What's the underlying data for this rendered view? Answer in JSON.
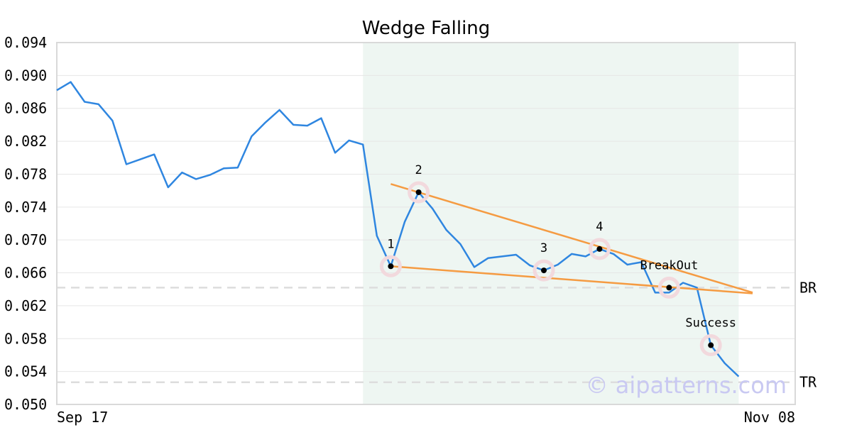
{
  "chart_data": {
    "type": "line",
    "title": "Wedge Falling",
    "xlabel": "",
    "ylabel": "",
    "x_tick_labels": [
      "Sep 17",
      "Nov 08"
    ],
    "y_ticks": [
      "0.050",
      "0.054",
      "0.058",
      "0.062",
      "0.066",
      "0.070",
      "0.074",
      "0.078",
      "0.082",
      "0.086",
      "0.090",
      "0.094"
    ],
    "ylim": [
      0.05,
      0.094
    ],
    "grid": true,
    "series": [
      {
        "color": "#2f86e0",
        "values": [
          0.0882,
          0.0892,
          0.0868,
          0.0865,
          0.0845,
          0.0792,
          0.0798,
          0.0804,
          0.0764,
          0.0782,
          0.0774,
          0.0779,
          0.0787,
          0.0788,
          0.0826,
          0.0843,
          0.0858,
          0.084,
          0.0839,
          0.0848,
          0.0806,
          0.0821,
          0.0816,
          0.0705,
          0.0668,
          0.0722,
          0.0758,
          0.0738,
          0.0712,
          0.0695,
          0.0667,
          0.0678,
          0.068,
          0.0682,
          0.0669,
          0.0663,
          0.067,
          0.0683,
          0.068,
          0.0689,
          0.0683,
          0.067,
          0.0673,
          0.0636,
          0.0636,
          0.0648,
          0.0642,
          0.0572,
          0.055,
          0.0534
        ]
      }
    ],
    "pattern_region": {
      "start_index": 22,
      "end_index": 49,
      "color": "#eef6f2"
    },
    "trendlines": [
      {
        "color": "#f59b42",
        "from": {
          "index": 24,
          "value": 0.0768
        },
        "to": {
          "index": 50,
          "value": 0.0636
        }
      },
      {
        "color": "#f59b42",
        "from": {
          "index": 24,
          "value": 0.0668
        },
        "to": {
          "index": 50,
          "value": 0.0635
        }
      }
    ],
    "levels": [
      {
        "label": "BR",
        "value": 0.0642
      },
      {
        "label": "TR",
        "value": 0.0527
      }
    ],
    "annotations": [
      {
        "label": "1",
        "index": 24,
        "value": 0.0668
      },
      {
        "label": "2",
        "index": 26,
        "value": 0.0758
      },
      {
        "label": "3",
        "index": 35,
        "value": 0.0663
      },
      {
        "label": "4",
        "index": 39,
        "value": 0.0689
      },
      {
        "label": "BreakOut",
        "index": 44,
        "value": 0.0642
      },
      {
        "label": "Success",
        "index": 47,
        "value": 0.0572
      }
    ],
    "watermark": "© aipatterns.com"
  }
}
